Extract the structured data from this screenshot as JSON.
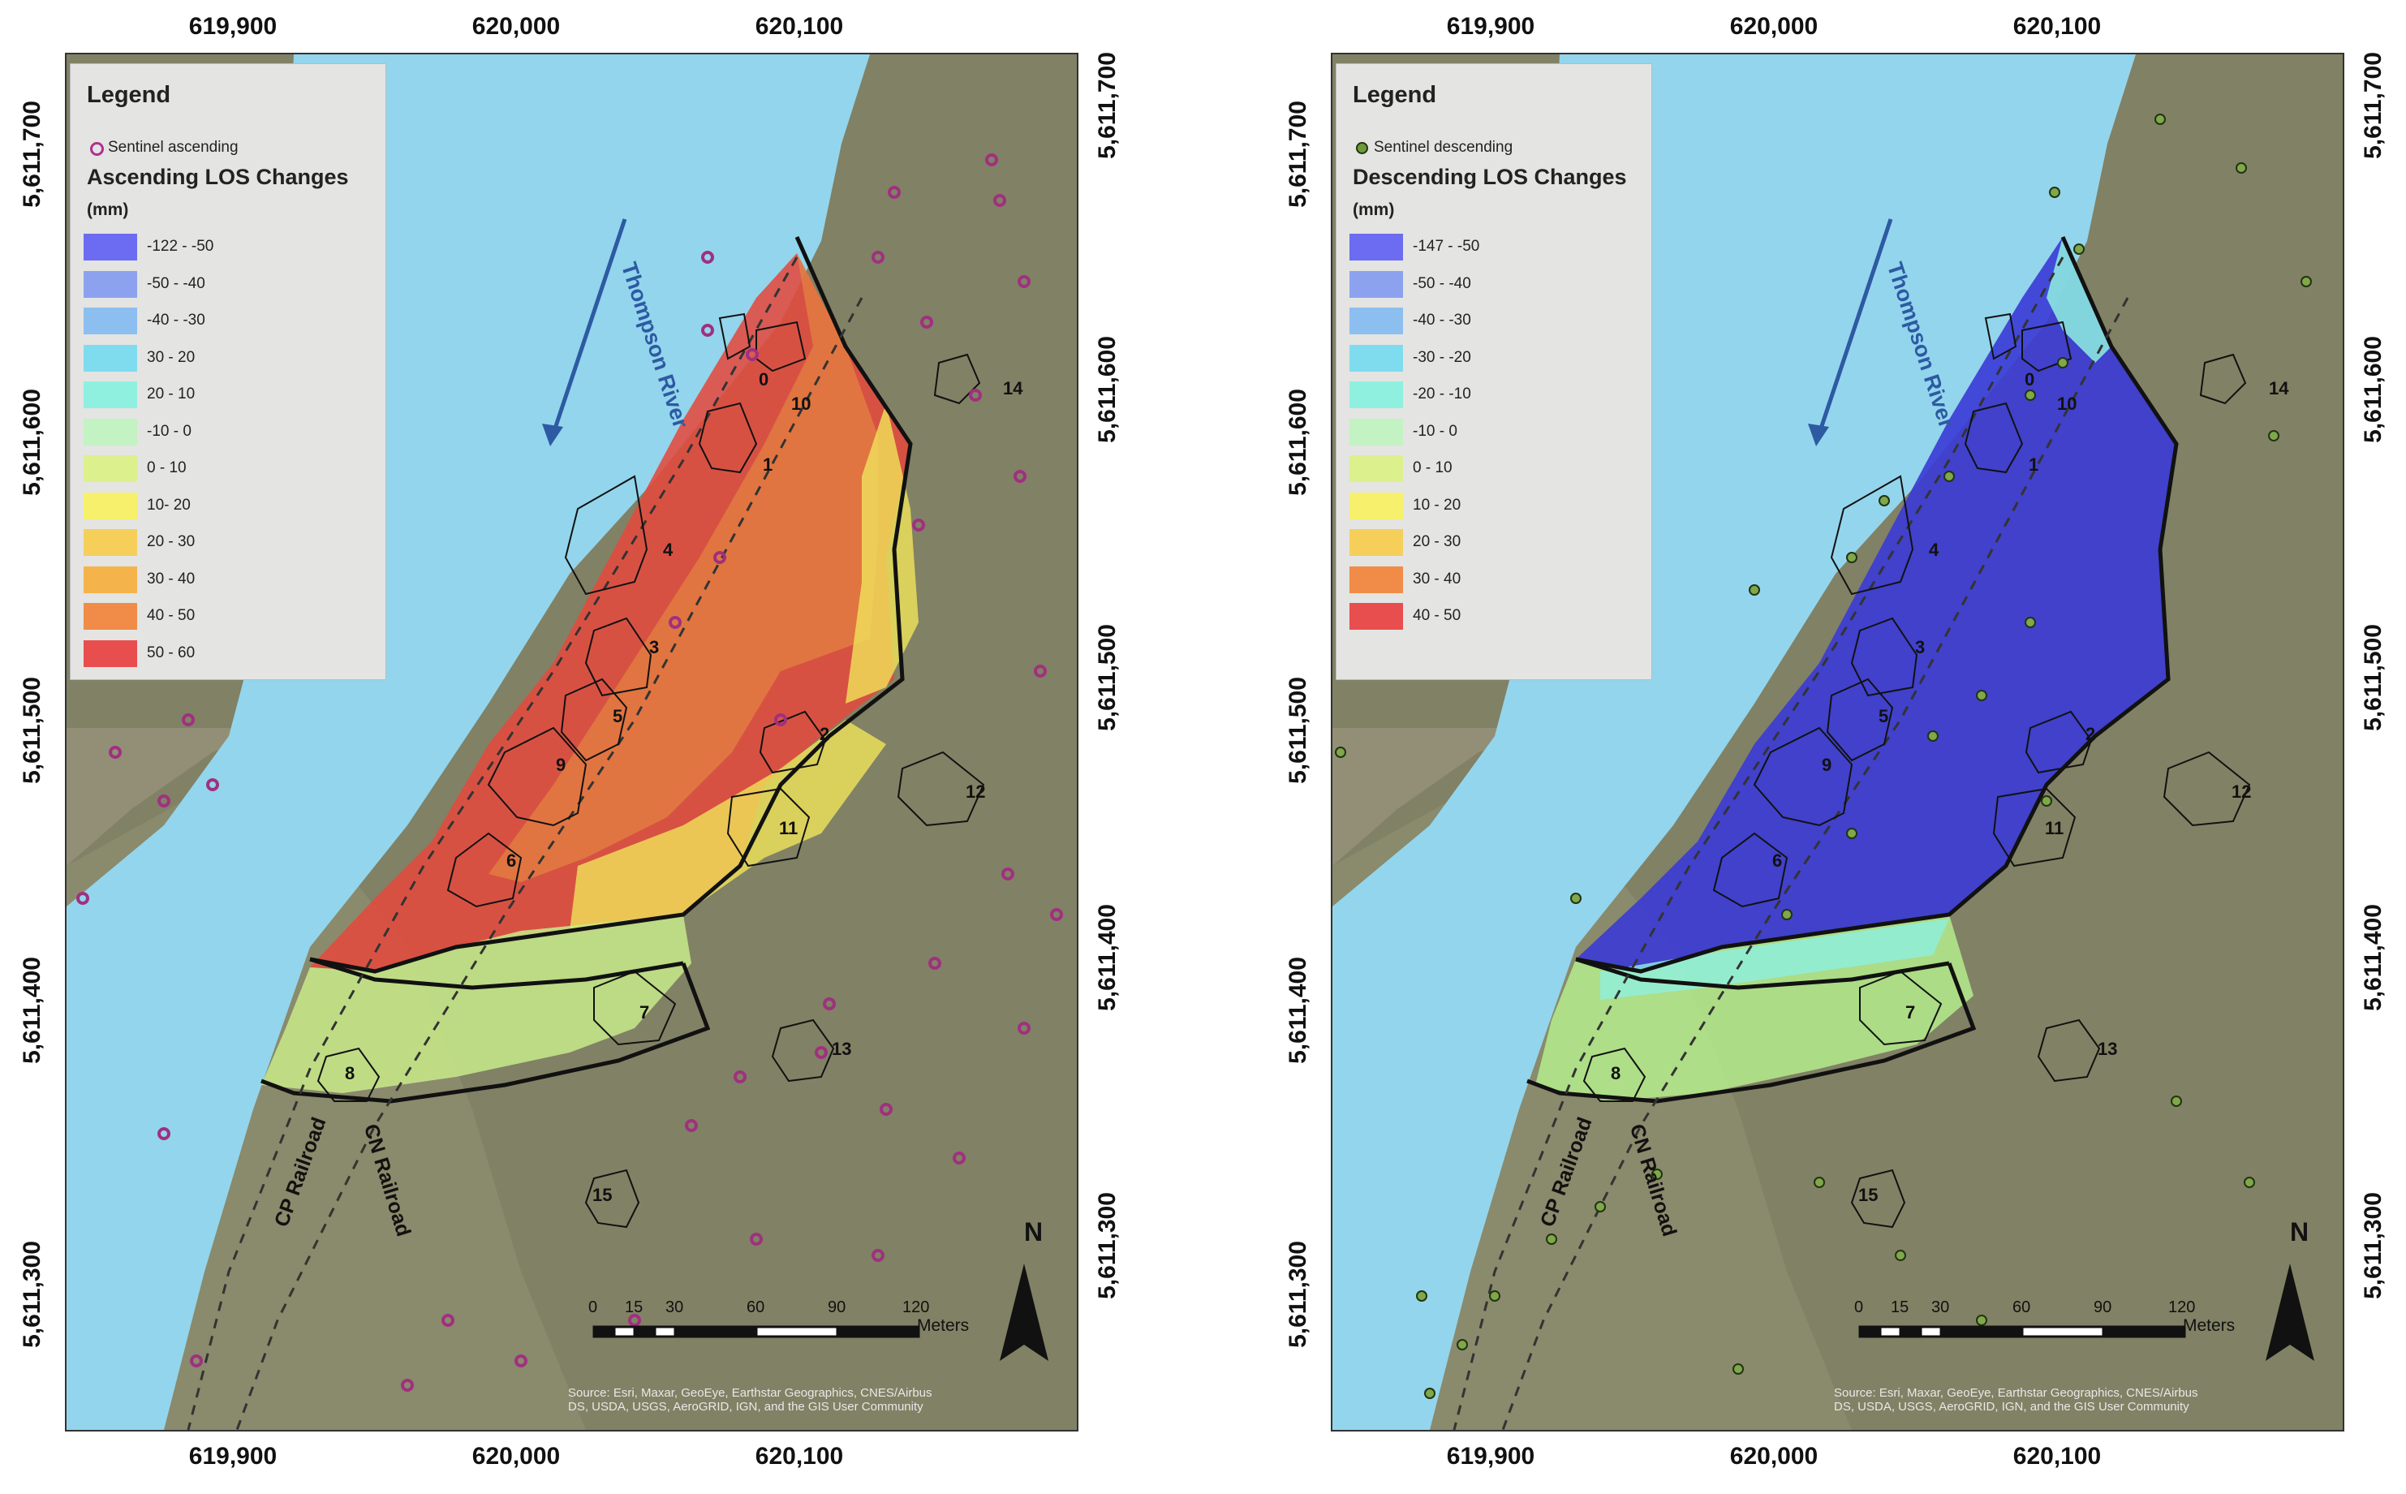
{
  "x_ticks": [
    "619,900",
    "620,000",
    "620,100"
  ],
  "y_ticks": [
    "5,611,700",
    "5,611,600",
    "5,611,500",
    "5,611,400",
    "5,611,300"
  ],
  "panels": [
    {
      "legend": {
        "title": "Legend",
        "point_label": "Sentinel ascending",
        "point_color": "#b0308f",
        "subtitle": "Ascending LOS Changes",
        "unit": "(mm)",
        "classes": [
          {
            "label": "-122 - -50",
            "color": "#6c6cf2"
          },
          {
            "label": "-50 - -40",
            "color": "#8da2ef"
          },
          {
            "label": "-40 - -30",
            "color": "#8cbff0"
          },
          {
            "label": "30 - 20",
            "color": "#7fdcef"
          },
          {
            "label": "20 - 10",
            "color": "#8ff0e0"
          },
          {
            "label": "-10 - 0",
            "color": "#c3f2c3"
          },
          {
            "label": "0 - 10",
            "color": "#ddf08e"
          },
          {
            "label": "10- 20",
            "color": "#f6f06c"
          },
          {
            "label": "20 - 30",
            "color": "#f5cf5a"
          },
          {
            "label": "30 - 40",
            "color": "#f5b34b"
          },
          {
            "label": "40 - 50",
            "color": "#f08c48"
          },
          {
            "label": "50 - 60",
            "color": "#e84e4e"
          }
        ]
      },
      "attribution": [
        "Source: Esri, Maxar, GeoEye, Earthstar Geographics, CNES/Airbus",
        "DS, USDA, USGS, AeroGRID, IGN, and the GIS User Community"
      ]
    },
    {
      "legend": {
        "title": "Legend",
        "point_label": "Sentinel descending",
        "point_color": "#6e9a3e",
        "subtitle": "Descending LOS Changes",
        "unit": "(mm)",
        "classes": [
          {
            "label": "-147 - -50",
            "color": "#6c6cf2"
          },
          {
            "label": "-50 - -40",
            "color": "#8da2ef"
          },
          {
            "label": "-40 - -30",
            "color": "#8cbff0"
          },
          {
            "label": "-30 - -20",
            "color": "#7fdcef"
          },
          {
            "label": "-20 - -10",
            "color": "#8ff0e0"
          },
          {
            "label": "-10 - 0",
            "color": "#c3f2c3"
          },
          {
            "label": "0 - 10",
            "color": "#ddf08e"
          },
          {
            "label": "10 - 20",
            "color": "#f6f06c"
          },
          {
            "label": "20 - 30",
            "color": "#f5cf5a"
          },
          {
            "label": "30 - 40",
            "color": "#f08c48"
          },
          {
            "label": "40 - 50",
            "color": "#e84e4e"
          }
        ]
      },
      "attribution": [
        "Source: Esri, Maxar, GeoEye, Earthstar Geographics, CNES/Airbus",
        "DS, USDA, USGS, AeroGRID, IGN, and the GIS User Community"
      ]
    }
  ],
  "map": {
    "river_label": "Thompson River",
    "rail_cp": "CP Railroad",
    "rail_cn": "CN Railroad",
    "north": "N",
    "scale_numbers": [
      "0",
      "15",
      "30",
      "60",
      "90",
      "120"
    ],
    "scale_unit": "Meters",
    "zones": [
      "0",
      "10",
      "1",
      "4",
      "3",
      "5",
      "2",
      "9",
      "6",
      "11",
      "12",
      "14",
      "7",
      "8",
      "13",
      "15"
    ]
  },
  "colors": {
    "water": "#93d5ec",
    "terrain": "#8a8a6c",
    "ascending_fill": "#e34a3f",
    "descending_fill": "#3a3ad6"
  }
}
